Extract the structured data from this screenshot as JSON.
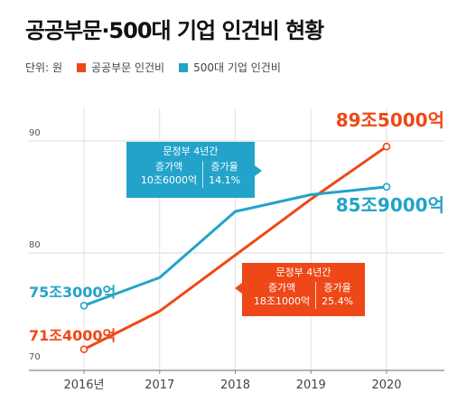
{
  "title": "공공부문·500대 기업 인건비 현황",
  "legend": {
    "unit": "단위: 원",
    "items": [
      {
        "label": "공공부문 인건비",
        "color": "#ee4818"
      },
      {
        "label": "500대 기업 인건비",
        "color": "#23a3c9"
      }
    ]
  },
  "chart_data": {
    "type": "line",
    "x": [
      "2016년",
      "2017",
      "2018",
      "2019",
      "2020"
    ],
    "ylim": [
      70,
      92
    ],
    "yticks": [
      70,
      80,
      90
    ],
    "grid": true,
    "series": [
      {
        "name": "공공부문 인건비",
        "color": "#ee4818",
        "values": [
          71.4,
          74.8,
          79.8,
          84.8,
          89.5
        ],
        "start_label": "71조4000억",
        "end_label": "89조5000억"
      },
      {
        "name": "500대 기업 인건비",
        "color": "#23a3c9",
        "values": [
          75.3,
          77.8,
          83.7,
          85.2,
          85.9
        ],
        "start_label": "75조3000억",
        "end_label": "85조9000억"
      }
    ]
  },
  "callouts": {
    "blue": {
      "heading": "문정부 4년간",
      "col1_title": "증가액",
      "col1_value": "10조6000억",
      "col2_title": "증가율",
      "col2_value": "14.1%"
    },
    "red": {
      "heading": "문정부 4년간",
      "col1_title": "증가액",
      "col1_value": "18조1000억",
      "col2_title": "증가율",
      "col2_value": "25.4%"
    }
  }
}
